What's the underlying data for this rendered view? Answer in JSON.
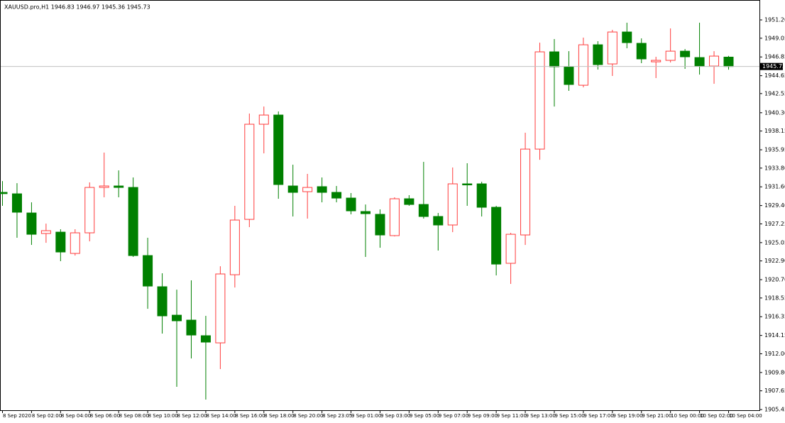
{
  "chart_data": {
    "type": "candlestick",
    "title": "XAUUSD.pro,H1  1946.83 1946.97 1945.36 1945.73",
    "categories": [
      "8 Sep 2020",
      null,
      "8 Sep 02:00",
      null,
      "8 Sep 04:00",
      null,
      "8 Sep 06:00",
      null,
      "8 Sep 08:00",
      null,
      "8 Sep 10:00",
      null,
      "8 Sep 12:00",
      null,
      "8 Sep 14:00",
      null,
      "8 Sep 16:00",
      null,
      "8 Sep 18:00",
      null,
      "8 Sep 20:00",
      null,
      "8 Sep 23:05",
      null,
      "9 Sep 01:00",
      null,
      "9 Sep 03:00",
      null,
      "9 Sep 05:00",
      null,
      "9 Sep 07:00",
      null,
      "9 Sep 09:00",
      null,
      "9 Sep 11:00",
      null,
      "9 Sep 13:00",
      null,
      "9 Sep 15:00",
      null,
      "9 Sep 17:00",
      null,
      "9 Sep 19:00",
      null,
      "9 Sep 21:00",
      null,
      "10 Sep 00:00",
      null,
      "10 Sep 02:00",
      null,
      "10 Sep 04:00"
    ],
    "open": [
      1930.95,
      1930.78,
      1928.53,
      1926.12,
      1926.28,
      1923.78,
      1926.2,
      1931.53,
      1931.7,
      1931.53,
      1923.53,
      1919.87,
      1916.53,
      1915.95,
      1914.12,
      1913.28,
      1921.28,
      1927.78,
      1938.95,
      1940.03,
      1931.7,
      1931.03,
      1931.62,
      1930.95,
      1930.28,
      1928.7,
      1928.37,
      1925.87,
      1930.2,
      1929.53,
      1928.12,
      1927.12,
      1931.95,
      1931.95,
      1929.2,
      1922.62,
      1925.95,
      1936.03,
      1947.45,
      1945.7,
      1943.53,
      1948.28,
      1946.03,
      1949.78,
      1948.45,
      1946.28,
      1946.45,
      1947.53,
      1946.78,
      1945.78,
      1946.83
    ],
    "high": [
      1932.28,
      1932.03,
      1929.78,
      1927.28,
      1926.62,
      1926.62,
      1932.12,
      1935.62,
      1933.53,
      1932.7,
      1925.62,
      1921.45,
      1919.53,
      1920.62,
      1916.45,
      1922.28,
      1929.37,
      1940.2,
      1941.03,
      1940.45,
      1934.2,
      1933.12,
      1932.7,
      1931.7,
      1930.87,
      1929.53,
      1928.95,
      1930.37,
      1930.62,
      1934.53,
      1928.53,
      1933.87,
      1934.37,
      1932.2,
      1929.37,
      1926.2,
      1937.95,
      1948.53,
      1948.95,
      1947.53,
      1949.12,
      1948.7,
      1950.03,
      1950.87,
      1949.03,
      1946.87,
      1950.2,
      1947.78,
      1950.87,
      1947.53,
      1946.97
    ],
    "low": [
      1929.37,
      1925.62,
      1924.78,
      1925.03,
      1922.87,
      1923.53,
      1925.2,
      1930.37,
      1930.37,
      1923.37,
      1917.28,
      1914.37,
      1908.12,
      1911.45,
      1906.62,
      1910.2,
      1919.78,
      1926.87,
      1935.53,
      1930.2,
      1928.12,
      1927.87,
      1929.78,
      1929.78,
      1928.37,
      1923.37,
      1924.45,
      1925.78,
      1929.37,
      1927.87,
      1924.12,
      1926.28,
      1929.37,
      1928.12,
      1921.2,
      1920.2,
      1924.78,
      1934.78,
      1941.03,
      1942.87,
      1943.28,
      1945.37,
      1944.62,
      1947.87,
      1946.12,
      1944.37,
      1946.2,
      1945.45,
      1944.78,
      1943.7,
      1945.36
    ],
    "close": [
      1930.8,
      1928.62,
      1926.03,
      1926.45,
      1923.95,
      1926.2,
      1931.53,
      1931.7,
      1931.53,
      1923.53,
      1919.95,
      1916.45,
      1915.87,
      1914.2,
      1913.37,
      1921.37,
      1927.7,
      1938.95,
      1940.03,
      1931.87,
      1930.95,
      1931.53,
      1930.95,
      1930.28,
      1928.78,
      1928.45,
      1925.95,
      1930.2,
      1929.53,
      1928.12,
      1927.12,
      1931.95,
      1931.87,
      1929.2,
      1922.53,
      1926.03,
      1936.03,
      1947.45,
      1945.7,
      1943.62,
      1948.28,
      1945.95,
      1949.78,
      1948.53,
      1946.62,
      1946.45,
      1947.53,
      1946.87,
      1945.78,
      1946.95,
      1945.73
    ],
    "up_color": "#ff3b3b",
    "down_color": "#008000",
    "current_price": 1945.73,
    "ylim": [
      1905.37,
      1953.37
    ],
    "yticks": [
      {
        "value": 1951.2,
        "label": "1951.20"
      },
      1949.05,
      1946.85,
      1944.65,
      1942.55,
      {
        "value": 1940.3,
        "label": "1940.30"
      },
      1938.15,
      1935.95,
      {
        "value": 1933.8,
        "label": "1933.80"
      },
      {
        "value": 1931.6,
        "label": "1931.60"
      },
      {
        "value": 1929.4,
        "label": "1929.40"
      },
      1927.25,
      1925.05,
      {
        "value": 1922.9,
        "label": "1922.90"
      },
      {
        "value": 1920.7,
        "label": "1920.70"
      },
      1918.55,
      1916.35,
      1914.15,
      {
        "value": 1912,
        "label": "1912.00"
      },
      {
        "value": 1909.8,
        "label": "1909.80"
      },
      1907.65,
      1905.45
    ]
  }
}
